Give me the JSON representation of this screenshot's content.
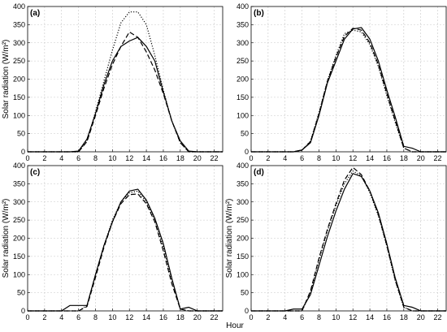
{
  "chart_data": [
    {
      "type": "line",
      "panel_label": "(a)",
      "ylabel": "Solar radiation (W/m²)",
      "xlabel": "",
      "xlim": [
        0,
        23
      ],
      "ylim": [
        0,
        400
      ],
      "xticks": [
        0,
        2,
        4,
        6,
        8,
        10,
        12,
        14,
        16,
        18,
        20,
        22
      ],
      "yticks": [
        0,
        50,
        100,
        150,
        200,
        250,
        300,
        350,
        400
      ],
      "grid": true,
      "series": [
        {
          "style": "solid",
          "x": [
            0,
            1,
            2,
            3,
            4,
            5,
            6,
            7,
            8,
            9,
            10,
            11,
            12,
            13,
            14,
            15,
            16,
            17,
            18,
            19,
            20,
            21,
            22,
            23
          ],
          "y": [
            0,
            0,
            0,
            0,
            0,
            0,
            2,
            35,
            105,
            185,
            250,
            290,
            305,
            315,
            290,
            250,
            165,
            85,
            30,
            2,
            0,
            0,
            0,
            0
          ]
        },
        {
          "style": "dashed",
          "x": [
            0,
            1,
            2,
            3,
            4,
            5,
            6,
            7,
            8,
            9,
            10,
            11,
            12,
            13,
            14,
            15,
            16,
            17,
            18,
            19,
            20,
            21,
            22,
            23
          ],
          "y": [
            0,
            0,
            0,
            0,
            0,
            0,
            0,
            28,
            100,
            175,
            240,
            290,
            330,
            315,
            275,
            225,
            160,
            85,
            25,
            0,
            0,
            0,
            0,
            0
          ]
        },
        {
          "style": "dotted",
          "x": [
            0,
            1,
            2,
            3,
            4,
            5,
            6,
            7,
            8,
            9,
            10,
            11,
            12,
            13,
            14,
            15,
            16,
            17,
            18,
            19,
            20,
            21,
            22,
            23
          ],
          "y": [
            0,
            0,
            0,
            0,
            0,
            0,
            0,
            30,
            110,
            195,
            280,
            355,
            385,
            385,
            350,
            265,
            170,
            85,
            25,
            0,
            0,
            0,
            0,
            0
          ]
        }
      ]
    },
    {
      "type": "line",
      "panel_label": "(b)",
      "ylabel": "",
      "xlabel": "",
      "xlim": [
        0,
        23
      ],
      "ylim": [
        0,
        400
      ],
      "xticks": [
        0,
        2,
        4,
        6,
        8,
        10,
        12,
        14,
        16,
        18,
        20,
        22
      ],
      "yticks": [
        0,
        50,
        100,
        150,
        200,
        250,
        300,
        350,
        400
      ],
      "grid": true,
      "series": [
        {
          "style": "solid",
          "x": [
            0,
            1,
            2,
            3,
            4,
            5,
            6,
            7,
            8,
            9,
            10,
            11,
            12,
            13,
            14,
            15,
            16,
            17,
            18,
            19,
            20,
            21,
            22,
            23
          ],
          "y": [
            0,
            0,
            0,
            0,
            0,
            0,
            5,
            25,
            100,
            190,
            250,
            310,
            338,
            342,
            310,
            250,
            170,
            95,
            15,
            10,
            0,
            0,
            0,
            0
          ]
        },
        {
          "style": "dashed",
          "x": [
            0,
            1,
            2,
            3,
            4,
            5,
            6,
            7,
            8,
            9,
            10,
            11,
            12,
            13,
            14,
            15,
            16,
            17,
            18,
            19,
            20,
            21,
            22,
            23
          ],
          "y": [
            0,
            0,
            0,
            0,
            0,
            0,
            5,
            28,
            105,
            195,
            260,
            318,
            340,
            335,
            300,
            240,
            160,
            85,
            10,
            0,
            0,
            0,
            0,
            0
          ]
        },
        {
          "style": "dotted",
          "x": [
            0,
            1,
            2,
            3,
            4,
            5,
            6,
            7,
            8,
            9,
            10,
            11,
            12,
            13,
            14,
            15,
            16,
            17,
            18,
            19,
            20,
            21,
            22,
            23
          ],
          "y": [
            0,
            0,
            0,
            0,
            0,
            0,
            4,
            30,
            108,
            196,
            265,
            325,
            335,
            330,
            295,
            235,
            155,
            80,
            10,
            0,
            0,
            0,
            0,
            0
          ]
        }
      ]
    },
    {
      "type": "line",
      "panel_label": "(c)",
      "ylabel": "Solar radiation (W/m²)",
      "xlabel": "",
      "xlim": [
        0,
        23
      ],
      "ylim": [
        0,
        400
      ],
      "xticks": [
        0,
        2,
        4,
        6,
        8,
        10,
        12,
        14,
        16,
        18,
        20,
        22
      ],
      "yticks": [
        0,
        50,
        100,
        150,
        200,
        250,
        300,
        350,
        400
      ],
      "grid": true,
      "series": [
        {
          "style": "solid",
          "x": [
            0,
            1,
            2,
            3,
            4,
            5,
            6,
            7,
            8,
            9,
            10,
            11,
            12,
            13,
            14,
            15,
            16,
            17,
            18,
            19,
            20,
            21,
            22,
            23
          ],
          "y": [
            0,
            0,
            0,
            0,
            0,
            15,
            15,
            15,
            100,
            180,
            245,
            300,
            330,
            335,
            305,
            255,
            185,
            90,
            5,
            10,
            0,
            0,
            0,
            0
          ]
        },
        {
          "style": "dashed",
          "x": [
            0,
            1,
            2,
            3,
            4,
            5,
            6,
            7,
            8,
            9,
            10,
            11,
            12,
            13,
            14,
            15,
            16,
            17,
            18,
            19,
            20,
            21,
            22,
            23
          ],
          "y": [
            0,
            0,
            0,
            0,
            0,
            0,
            0,
            12,
            92,
            175,
            245,
            295,
            320,
            322,
            295,
            245,
            165,
            75,
            5,
            0,
            0,
            0,
            0,
            0
          ]
        },
        {
          "style": "dotted",
          "x": [
            0,
            1,
            2,
            3,
            4,
            5,
            6,
            7,
            8,
            9,
            10,
            11,
            12,
            13,
            14,
            15,
            16,
            17,
            18,
            19,
            20,
            21,
            22,
            23
          ],
          "y": [
            0,
            0,
            0,
            0,
            0,
            0,
            0,
            15,
            98,
            180,
            250,
            300,
            325,
            330,
            300,
            250,
            175,
            85,
            5,
            0,
            0,
            0,
            0,
            0
          ]
        }
      ]
    },
    {
      "type": "line",
      "panel_label": "(d)",
      "ylabel": "Solar radiation (W/m²)",
      "xlabel": "",
      "xlim": [
        0,
        23
      ],
      "ylim": [
        0,
        400
      ],
      "xticks": [
        0,
        2,
        4,
        6,
        8,
        10,
        12,
        14,
        16,
        18,
        20,
        22
      ],
      "yticks": [
        0,
        50,
        100,
        150,
        200,
        250,
        300,
        350,
        400
      ],
      "grid": true,
      "series": [
        {
          "style": "solid",
          "x": [
            0,
            1,
            2,
            3,
            4,
            5,
            6,
            7,
            8,
            9,
            10,
            11,
            12,
            13,
            14,
            15,
            16,
            17,
            18,
            19,
            20,
            21,
            22,
            23
          ],
          "y": [
            0,
            0,
            0,
            0,
            0,
            5,
            5,
            45,
            125,
            205,
            275,
            335,
            378,
            370,
            330,
            270,
            185,
            90,
            15,
            10,
            0,
            0,
            0,
            0
          ]
        },
        {
          "style": "dashed",
          "x": [
            0,
            1,
            2,
            3,
            4,
            5,
            6,
            7,
            8,
            9,
            10,
            11,
            12,
            13,
            14,
            15,
            16,
            17,
            18,
            19,
            20,
            21,
            22,
            23
          ],
          "y": [
            0,
            0,
            0,
            0,
            0,
            0,
            0,
            55,
            145,
            225,
            295,
            360,
            395,
            375,
            330,
            265,
            180,
            85,
            10,
            0,
            0,
            0,
            0,
            0
          ]
        },
        {
          "style": "dotted",
          "x": [
            0,
            1,
            2,
            3,
            4,
            5,
            6,
            7,
            8,
            9,
            10,
            11,
            12,
            13,
            14,
            15,
            16,
            17,
            18,
            19,
            20,
            21,
            22,
            23
          ],
          "y": [
            0,
            0,
            0,
            0,
            0,
            0,
            0,
            50,
            140,
            220,
            290,
            350,
            385,
            372,
            325,
            262,
            178,
            82,
            10,
            0,
            0,
            0,
            0,
            0
          ]
        }
      ]
    }
  ],
  "figure": {
    "xlabel": "Hour"
  }
}
